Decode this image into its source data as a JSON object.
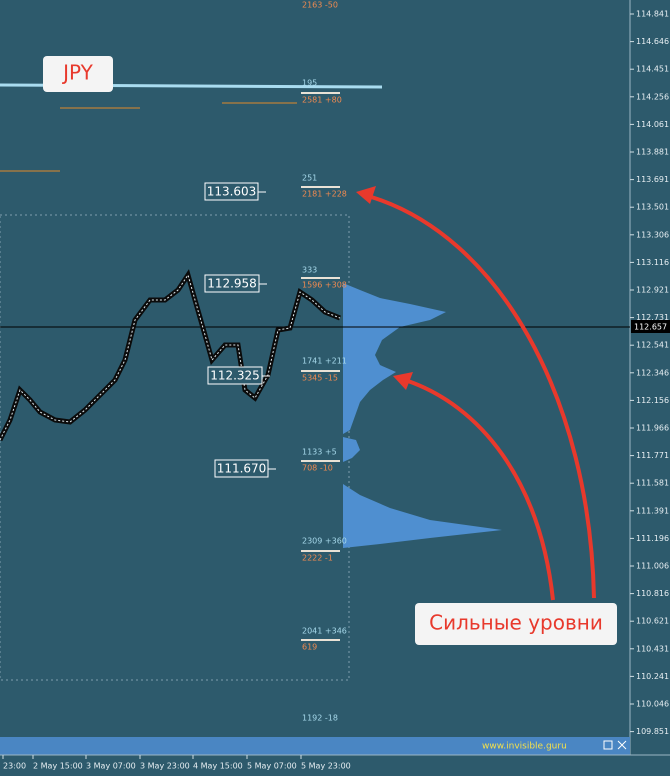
{
  "symbol_label": "JPY",
  "annotation": "Сильные уровни",
  "current_price": "112.657",
  "footer": "www.invisible.guru",
  "price_axis": [
    "114.841",
    "114.646",
    "114.451",
    "114.256",
    "114.061",
    "113.881",
    "113.691",
    "113.501",
    "113.306",
    "113.116",
    "112.921",
    "112.731",
    "112.541",
    "112.346",
    "112.156",
    "111.966",
    "111.771",
    "111.581",
    "111.391",
    "111.196",
    "111.006",
    "110.816",
    "110.621",
    "110.431",
    "110.241",
    "110.046",
    "109.851"
  ],
  "time_axis": [
    "23:00",
    "2 May 15:00",
    "3 May 07:00",
    "3 May 23:00",
    "4 May 15:00",
    "5 May 07:00",
    "5 May 23:00"
  ],
  "levels": [
    "113.603",
    "112.958",
    "112.325",
    "111.670"
  ],
  "profile_labels": [
    "2163 -50",
    "195",
    "2581 +80",
    "251",
    "2181 +228",
    "333",
    "1596 +308",
    "1741 +211",
    "5345 -15",
    "1133 +5",
    "708 -10",
    "2309 +360",
    "2222 -1",
    "2041 +346",
    "619",
    "1192 -18"
  ]
}
